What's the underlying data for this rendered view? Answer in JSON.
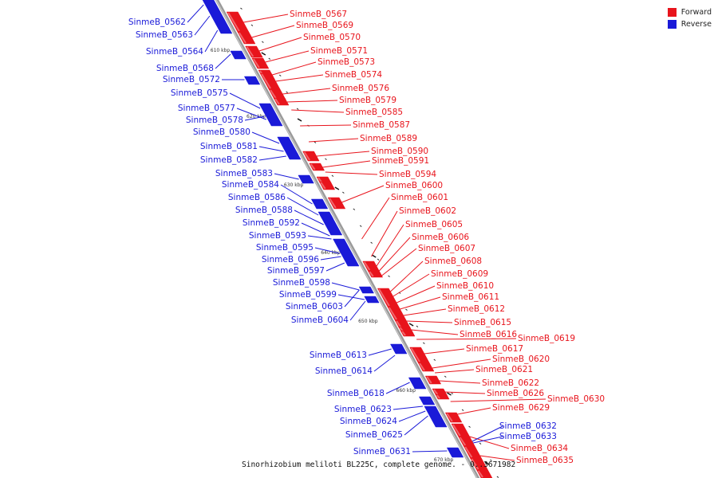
{
  "colors": {
    "forward": "#e8141c",
    "reverse": "#1a1ad8",
    "backbone": "#8f8f8f"
  },
  "legend": [
    {
      "label": "Forward",
      "color": "#e8141c"
    },
    {
      "label": "Reverse",
      "color": "#1a1ad8"
    }
  ],
  "caption": "Sinorhizobium meliloti BL225C, complete genome. - 0..3671982",
  "ticks": [
    "610 kbp",
    "620 kbp",
    "630 kbp",
    "640 kbp",
    "650 kbp",
    "660 kbp",
    "670 kbp"
  ],
  "forward_genes": [
    "SinmeB_0567",
    "SinmeB_0569",
    "SinmeB_0570",
    "SinmeB_0571",
    "SinmeB_0573",
    "SinmeB_0574",
    "SinmeB_0576",
    "SinmeB_0579",
    "SinmeB_0585",
    "SinmeB_0587",
    "SinmeB_0589",
    "SinmeB_0590",
    "SinmeB_0591",
    "SinmeB_0594",
    "SinmeB_0600",
    "SinmeB_0601",
    "SinmeB_0602",
    "SinmeB_0605",
    "SinmeB_0606",
    "SinmeB_0607",
    "SinmeB_0608",
    "SinmeB_0609",
    "SinmeB_0610",
    "SinmeB_0611",
    "SinmeB_0612",
    "SinmeB_0615",
    "SinmeB_0616",
    "SinmeB_0619",
    "SinmeB_0617",
    "SinmeB_0620",
    "SinmeB_0621",
    "SinmeB_0622",
    "SinmeB_0626",
    "SinmeB_0630",
    "SinmeB_0629",
    "SinmeB_0634",
    "SinmeB_0635"
  ],
  "reverse_genes": [
    "SinmeB_0562",
    "SinmeB_0563",
    "SinmeB_0564",
    "SinmeB_0568",
    "SinmeB_0572",
    "SinmeB_0575",
    "SinmeB_0577",
    "SinmeB_0578",
    "SinmeB_0580",
    "SinmeB_0581",
    "SinmeB_0582",
    "SinmeB_0583",
    "SinmeB_0584",
    "SinmeB_0586",
    "SinmeB_0588",
    "SinmeB_0592",
    "SinmeB_0593",
    "SinmeB_0595",
    "SinmeB_0596",
    "SinmeB_0597",
    "SinmeB_0598",
    "SinmeB_0599",
    "SinmeB_0603",
    "SinmeB_0604",
    "SinmeB_0613",
    "SinmeB_0614",
    "SinmeB_0618",
    "SinmeB_0623",
    "SinmeB_0624",
    "SinmeB_0625",
    "SinmeB_0632",
    "SinmeB_0633",
    "SinmeB_0631"
  ]
}
